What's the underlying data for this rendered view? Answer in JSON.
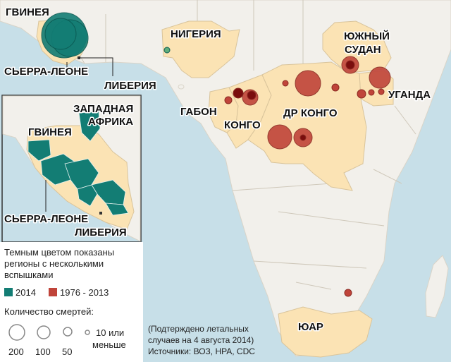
{
  "labels": {
    "guinea": "ГВИНЕЯ",
    "sierra_leone": "СЬЕРРА-ЛЕОНЕ",
    "liberia": "ЛИБЕРИЯ",
    "nigeria": "НИГЕРИЯ",
    "south_sudan_1": "ЮЖНЫЙ",
    "south_sudan_2": "СУДАН",
    "uganda": "УГАНДА",
    "gabon": "ГАБОН",
    "congo": "КОНГО",
    "drc": "ДР КОНГО",
    "south_africa": "ЮАР"
  },
  "inset": {
    "title_1": "ЗАПАДНАЯ",
    "title_2": "АФРИКА",
    "guinea": "ГВИНЕЯ",
    "sierra_leone": "СЬЕРРА-ЛЕОНЕ",
    "liberia": "ЛИБЕРИЯ"
  },
  "legend": {
    "note_1": "Темным цветом показаны",
    "note_2": "регионы с несколькими",
    "note_3": "вспышками",
    "year_2014": "2014",
    "year_range": "1976 - 2013",
    "deaths_title": "Количество смертей:",
    "size_200": "200",
    "size_100": "100",
    "size_50": "50",
    "size_10_1": "10 или",
    "size_10_2": "меньше"
  },
  "source": {
    "line_1": "(Подтерждено летальных",
    "line_2": "случаев на 4 августа 2014)",
    "line_3": "Источники: ВОЗ, HPA, CDC"
  },
  "colors": {
    "ocean": "#c7dfe8",
    "land": "#f2f0eb",
    "highlight_land": "#fbe3b4",
    "outbreak_2014": "#137d74",
    "outbreak_1976_2013": "#c0443a",
    "dark_multiple": "#7a0d0d"
  }
}
